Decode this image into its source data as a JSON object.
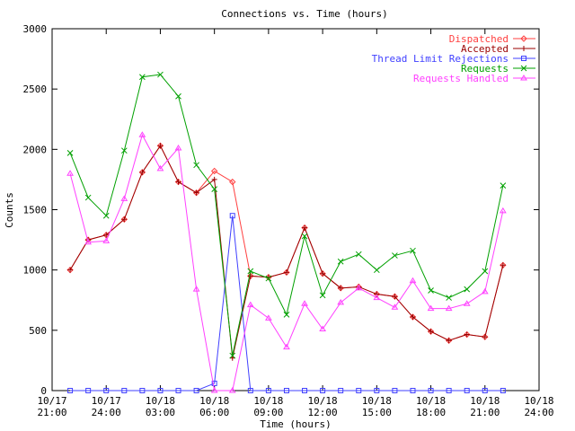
{
  "chart_data": {
    "type": "line",
    "title": "Connections vs. Time (hours)",
    "xlabel": "Time (hours)",
    "ylabel": "Counts",
    "ylim": [
      0,
      3000
    ],
    "xlim": [
      0,
      27
    ],
    "grid": false,
    "legend_position": "top-right",
    "y_ticks": [
      "0",
      "500",
      "1000",
      "1500",
      "2000",
      "2500",
      "3000"
    ],
    "x_ticks": [
      {
        "date": "10/17",
        "time": "21:00"
      },
      {
        "date": "10/17",
        "time": "24:00"
      },
      {
        "date": "10/18",
        "time": "03:00"
      },
      {
        "date": "10/18",
        "time": "06:00"
      },
      {
        "date": "10/18",
        "time": "09:00"
      },
      {
        "date": "10/18",
        "time": "12:00"
      },
      {
        "date": "10/18",
        "time": "15:00"
      },
      {
        "date": "10/18",
        "time": "18:00"
      },
      {
        "date": "10/18",
        "time": "21:00"
      },
      {
        "date": "10/18",
        "time": "24:00"
      }
    ],
    "x": [
      1,
      2,
      3,
      4,
      5,
      6,
      7,
      8,
      9,
      10,
      11,
      12,
      13,
      14,
      15,
      16,
      17,
      18,
      19,
      20,
      21,
      22,
      23,
      24,
      25,
      26
    ],
    "series": [
      {
        "name": "Dispatched",
        "color": "#ff4040",
        "marker": "diamond",
        "values": [
          1000,
          1250,
          1290,
          1420,
          1810,
          2030,
          1730,
          1640,
          1820,
          1730,
          950,
          940,
          980,
          1350,
          970,
          850,
          860,
          800,
          780,
          610,
          490,
          415,
          465,
          445,
          1040,
          null
        ]
      },
      {
        "name": "Accepted",
        "color": "#9b0000",
        "marker": "plus",
        "values": [
          1000,
          1250,
          1290,
          1420,
          1810,
          2030,
          1730,
          1640,
          1750,
          270,
          950,
          940,
          980,
          1350,
          970,
          850,
          860,
          800,
          780,
          610,
          490,
          415,
          465,
          445,
          1040,
          null
        ]
      },
      {
        "name": "Thread Limit Rejections",
        "color": "#4040ff",
        "marker": "square",
        "values": [
          0,
          0,
          0,
          0,
          0,
          0,
          0,
          0,
          60,
          1450,
          0,
          0,
          0,
          0,
          0,
          0,
          0,
          0,
          0,
          0,
          0,
          0,
          0,
          0,
          0,
          null
        ]
      },
      {
        "name": "Requests",
        "color": "#00a000",
        "marker": "cross",
        "values": [
          1970,
          1600,
          1450,
          1990,
          2600,
          2620,
          2440,
          1870,
          1670,
          290,
          990,
          930,
          630,
          1280,
          790,
          1070,
          1130,
          1000,
          1120,
          1160,
          830,
          770,
          840,
          990,
          1700,
          null
        ]
      },
      {
        "name": "Requests Handled",
        "color": "#ff40ff",
        "marker": "triangle",
        "values": [
          1800,
          1230,
          1240,
          1590,
          2120,
          1840,
          2010,
          840,
          0,
          0,
          710,
          600,
          360,
          720,
          510,
          730,
          850,
          770,
          690,
          910,
          680,
          680,
          720,
          820,
          1490,
          null
        ]
      }
    ]
  }
}
